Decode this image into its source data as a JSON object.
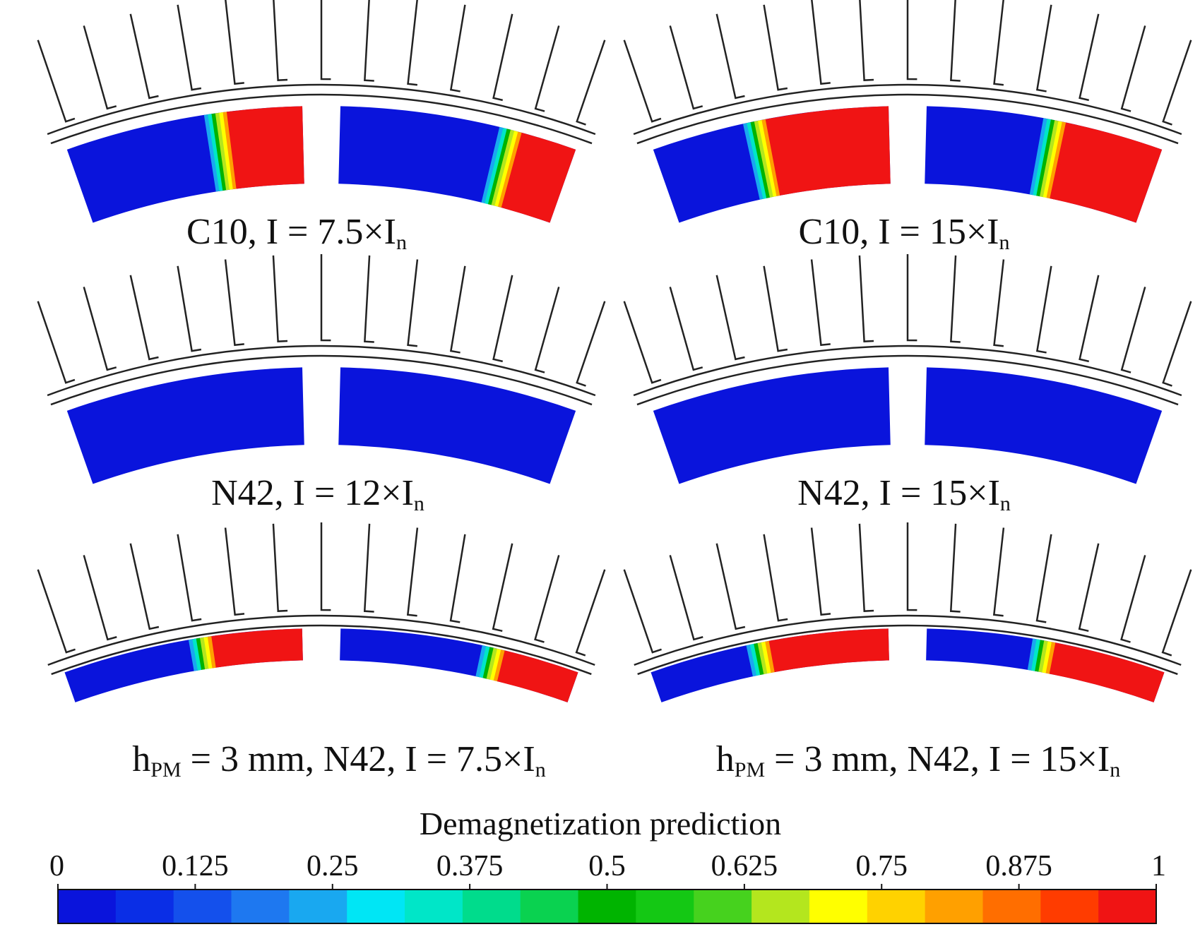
{
  "figure": {
    "panels": [
      {
        "id": "c10-7-5",
        "material": "C10",
        "caption_main": "C10, I = 7.5×I",
        "caption_sub": "n",
        "demag_zones": {
          "left_magnet_red_fraction": 0.3,
          "right_magnet_red_fraction": 0.22
        }
      },
      {
        "id": "c10-15",
        "material": "C10",
        "caption_main": "C10, I = 15×I",
        "caption_sub": "n",
        "demag_zones": {
          "left_magnet_red_fraction": 0.5,
          "right_magnet_red_fraction": 0.4
        }
      },
      {
        "id": "n42-12",
        "material": "N42",
        "caption_main": "N42, I = 12×I",
        "caption_sub": "n",
        "demag_zones": {
          "left_magnet_red_fraction": 0,
          "right_magnet_red_fraction": 0
        }
      },
      {
        "id": "n42-15",
        "material": "N42",
        "caption_main": "N42, I = 15×I",
        "caption_sub": "n",
        "demag_zones": {
          "left_magnet_red_fraction": 0,
          "right_magnet_red_fraction": 0
        }
      },
      {
        "id": "hpm3-7-5",
        "material": "N42",
        "caption_pre": "h",
        "caption_pre_sub": "PM",
        "caption_main": " = 3 mm, N42, I = 7.5×I",
        "caption_sub": "n",
        "demag_zones": {
          "left_magnet_red_fraction": 0.36,
          "right_magnet_red_fraction": 0.3
        }
      },
      {
        "id": "hpm3-15",
        "material": "N42",
        "caption_pre": "h",
        "caption_pre_sub": "PM",
        "caption_main": " = 3 mm, N42, I = 15×I",
        "caption_sub": "n",
        "demag_zones": {
          "left_magnet_red_fraction": 0.48,
          "right_magnet_red_fraction": 0.45
        }
      }
    ]
  },
  "colorbar": {
    "title": "Demagnetization prediction",
    "ticks": [
      "0",
      "0.125",
      "0.25",
      "0.375",
      "0.5",
      "0.625",
      "0.75",
      "0.875",
      "1"
    ],
    "colors": [
      "#0a14dc",
      "#0a2ee6",
      "#1450ec",
      "#1e78f0",
      "#19a8f0",
      "#00e6f5",
      "#00e6c8",
      "#00dc8c",
      "#0ad250",
      "#00b400",
      "#14c814",
      "#46d21e",
      "#b4e61e",
      "#ffff00",
      "#ffd200",
      "#ffa000",
      "#ff6e00",
      "#ff3c00",
      "#f01414"
    ]
  },
  "colors": {
    "magnet_healthy": "#0a14dc",
    "magnet_demag": "#f01414",
    "outline": "#222222"
  }
}
